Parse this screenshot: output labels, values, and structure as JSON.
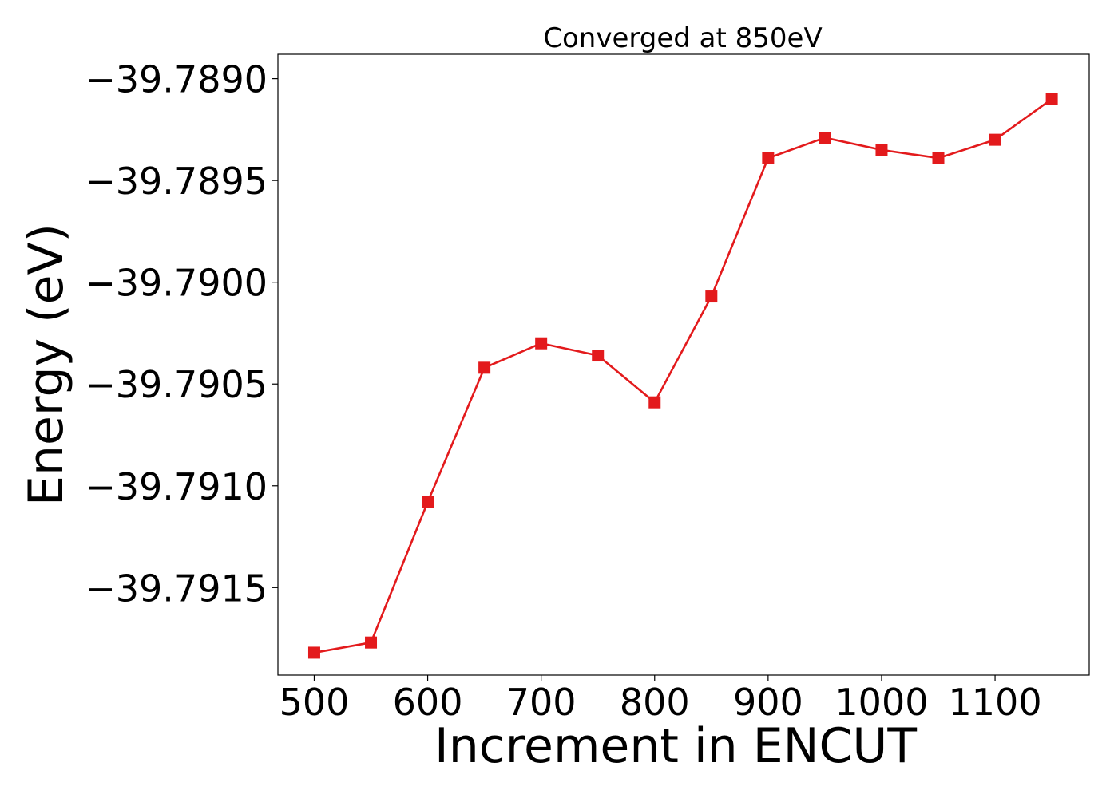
{
  "chart_data": {
    "type": "line",
    "title": "Converged at 850eV",
    "xlabel": "Increment in ENCUT",
    "ylabel": "Energy (eV)",
    "x": [
      500,
      550,
      600,
      650,
      700,
      750,
      800,
      850,
      900,
      950,
      1000,
      1050,
      1100,
      1150
    ],
    "series": [
      {
        "values": [
          -39.79182,
          -39.79177,
          -39.79108,
          -39.79042,
          -39.7903,
          -39.79036,
          -39.79059,
          -39.79007,
          -39.78939,
          -39.78929,
          -39.78935,
          -39.78939,
          -39.7893,
          -39.7891
        ],
        "color": "#e31a1c",
        "marker": "square"
      }
    ],
    "xticks": [
      500,
      600,
      700,
      800,
      900,
      1000,
      1100
    ],
    "xtick_labels": [
      "500",
      "600",
      "700",
      "800",
      "900",
      "1000",
      "1100"
    ],
    "yticks": [
      -39.7915,
      -39.791,
      -39.7905,
      -39.79,
      -39.7895,
      -39.789
    ],
    "ytick_labels": [
      "−39.7915",
      "−39.7910",
      "−39.7905",
      "−39.7900",
      "−39.7895",
      "−39.7890"
    ],
    "xlim": [
      468,
      1183
    ],
    "ylim": [
      -39.79193,
      -39.78888
    ],
    "grid": false,
    "legend": false
  }
}
